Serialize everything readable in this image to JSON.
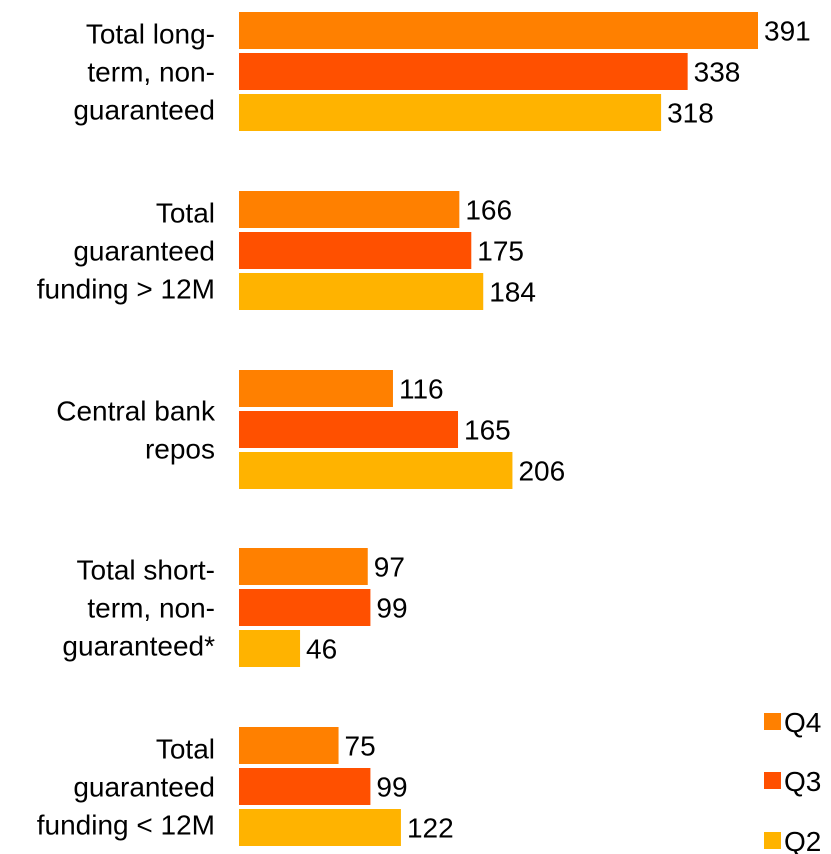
{
  "chart_data": {
    "type": "bar",
    "orientation": "horizontal",
    "categories": [
      "Total long-term, non-guaranteed",
      "Total guaranteed funding > 12M",
      "Central bank repos",
      "Total short-term, non-guaranteed*",
      "Total guaranteed funding < 12M"
    ],
    "category_lines": [
      [
        "Total long-",
        "term, non-",
        "guaranteed"
      ],
      [
        "Total",
        "guaranteed",
        "funding > 12M"
      ],
      [
        "Central bank",
        "repos"
      ],
      [
        "Total short-",
        "term, non-",
        "guaranteed*"
      ],
      [
        "Total",
        "guaranteed",
        "funding < 12M"
      ]
    ],
    "series": [
      {
        "name": "Q4",
        "color": "#FF8000",
        "values": [
          391,
          166,
          116,
          97,
          75
        ]
      },
      {
        "name": "Q3",
        "color": "#FF5000",
        "values": [
          338,
          175,
          165,
          99,
          99
        ]
      },
      {
        "name": "Q2",
        "color": "#FFB300",
        "values": [
          318,
          184,
          206,
          46,
          122
        ]
      }
    ],
    "legend_position": "bottom-right",
    "grid": false,
    "xlim": [
      0,
      391
    ]
  }
}
